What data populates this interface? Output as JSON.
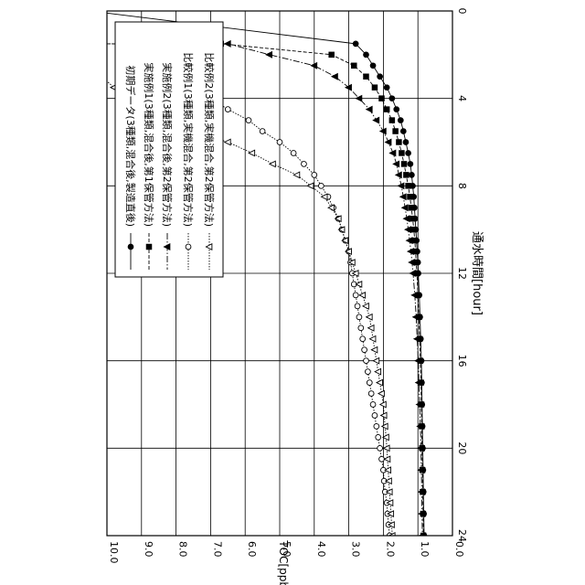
{
  "chart_data": {
    "type": "line",
    "xlabel": "通水時間[hour]",
    "ylabel": "TOC[ppb]",
    "xlim": [
      0,
      24
    ],
    "ylim": [
      0,
      10
    ],
    "x_ticks": [
      "0",
      "4",
      "8",
      "12",
      "16",
      "20",
      "24"
    ],
    "y_ticks": [
      "0.0",
      "1.0",
      "2.0",
      "3.0",
      "4.0",
      "5.0",
      "6.0",
      "7.0",
      "8.0",
      "9.0",
      "10.0"
    ],
    "grid": true,
    "legend_position": "top-left",
    "orientation": "rotated 90° clockwise",
    "series": [
      {
        "name": "初期データ(3種類,混合後,製造直後)",
        "marker": "circle-filled",
        "line": "solid",
        "x": [
          0,
          1.5,
          2,
          2.5,
          3,
          3.5,
          4,
          4.5,
          5,
          5.5,
          6,
          6.5,
          7,
          7.5,
          8,
          8.5,
          9,
          9.5,
          10,
          10.5,
          11,
          11.5,
          12,
          13,
          14,
          15,
          16,
          17,
          18,
          19,
          20,
          21,
          22,
          23,
          24
        ],
        "y": [
          10.5,
          2.8,
          2.5,
          2.3,
          2.1,
          1.9,
          1.75,
          1.62,
          1.5,
          1.42,
          1.35,
          1.28,
          1.22,
          1.18,
          1.15,
          1.12,
          1.1,
          1.08,
          1.06,
          1.04,
          1.02,
          1.0,
          0.99,
          0.96,
          0.94,
          0.92,
          0.9,
          0.89,
          0.88,
          0.87,
          0.86,
          0.85,
          0.84,
          0.83,
          0.82
        ]
      },
      {
        "name": "実施例1(3種類,混合後,第1保管方法)",
        "marker": "square-filled",
        "line": "dashed",
        "x": [
          1.5,
          1.5,
          2,
          2.5,
          3,
          3.5,
          4,
          4.5,
          5,
          5.5,
          6,
          6.5,
          7,
          7.5,
          8,
          8.5,
          9,
          9.5,
          10,
          10.5,
          11,
          11.5,
          12,
          13,
          14,
          15,
          16,
          17,
          18,
          19,
          20,
          21,
          22,
          23,
          24
        ],
        "y": [
          10.5,
          6.7,
          3.5,
          2.85,
          2.5,
          2.25,
          2.05,
          1.9,
          1.75,
          1.65,
          1.55,
          1.47,
          1.4,
          1.34,
          1.28,
          1.23,
          1.19,
          1.15,
          1.12,
          1.09,
          1.07,
          1.05,
          1.03,
          1.0,
          0.97,
          0.95,
          0.93,
          0.91,
          0.9,
          0.89,
          0.88,
          0.87,
          0.86,
          0.85,
          0.84
        ]
      },
      {
        "name": "実施例2(3種類,混合後,第2保管方法)",
        "marker": "triangle-filled",
        "line": "dash-dot",
        "x": [
          1.5,
          1.5,
          2,
          2.5,
          3,
          3.5,
          4,
          4.5,
          5,
          5.5,
          6,
          6.5,
          7,
          7.5,
          8,
          8.5,
          9,
          9.5,
          10,
          10.5,
          11,
          11.5,
          12,
          13,
          14,
          15,
          16,
          17,
          18,
          19,
          20,
          21,
          22,
          23,
          24
        ],
        "y": [
          10.5,
          6.5,
          5.3,
          4.0,
          3.4,
          3.0,
          2.7,
          2.4,
          2.2,
          2.0,
          1.85,
          1.72,
          1.62,
          1.55,
          1.48,
          1.42,
          1.37,
          1.32,
          1.28,
          1.24,
          1.2,
          1.17,
          1.14,
          1.09,
          1.05,
          1.02,
          0.99,
          0.97,
          0.95,
          0.93,
          0.91,
          0.9,
          0.89,
          0.88,
          0.87
        ]
      },
      {
        "name": "比較例1(3種類,実機混合,第2保管方法)",
        "marker": "circle-open",
        "line": "dotted",
        "x": [
          3,
          3.5,
          4,
          4.5,
          5,
          5.5,
          6,
          6.5,
          7,
          7.5,
          8,
          8.5,
          9,
          9.5,
          10,
          10.5,
          11,
          11.5,
          12,
          12.5,
          13,
          13.5,
          14,
          14.5,
          15,
          15.5,
          16,
          16.5,
          17,
          17.5,
          18,
          18.5,
          19,
          19.5,
          20,
          20.5,
          21,
          21.5,
          22,
          22.5,
          23,
          23.5,
          24
        ],
        "y": [
          8.0,
          7.8,
          7.0,
          6.5,
          5.9,
          5.5,
          5.0,
          4.6,
          4.3,
          4.0,
          3.8,
          3.6,
          3.45,
          3.3,
          3.2,
          3.1,
          3.0,
          2.95,
          2.9,
          2.85,
          2.8,
          2.75,
          2.7,
          2.65,
          2.6,
          2.55,
          2.5,
          2.45,
          2.4,
          2.35,
          2.3,
          2.25,
          2.2,
          2.15,
          2.1,
          2.05,
          2.0,
          1.98,
          1.95,
          1.9,
          1.88,
          1.85,
          1.82
        ]
      },
      {
        "name": "比較例2(3種類,実機混合,第2保管方法)",
        "marker": "triangle-open",
        "line": "dotted",
        "x": [
          2.5,
          3.5,
          4,
          4.5,
          5,
          5.5,
          6,
          6.5,
          7,
          7.5,
          8,
          8.5,
          9,
          9.5,
          10,
          10.5,
          11,
          11.5,
          12,
          12.5,
          13,
          13.5,
          14,
          14.5,
          15,
          15.5,
          16,
          16.5,
          17,
          17.5,
          18,
          18.5,
          19,
          19.5,
          20,
          20.5,
          21,
          21.5,
          22,
          22.5,
          23,
          23.5,
          24
        ],
        "y": [
          10.5,
          9.8,
          9.1,
          8.9,
          8.2,
          7.5,
          6.5,
          5.8,
          5.2,
          4.5,
          4.1,
          3.7,
          3.5,
          3.3,
          3.2,
          3.1,
          3.0,
          2.9,
          2.8,
          2.7,
          2.6,
          2.5,
          2.4,
          2.35,
          2.3,
          2.25,
          2.2,
          2.15,
          2.1,
          2.05,
          2.0,
          1.98,
          1.95,
          1.92,
          1.9,
          1.88,
          1.86,
          1.84,
          1.82,
          1.8,
          1.78,
          1.76,
          1.74
        ]
      }
    ]
  }
}
